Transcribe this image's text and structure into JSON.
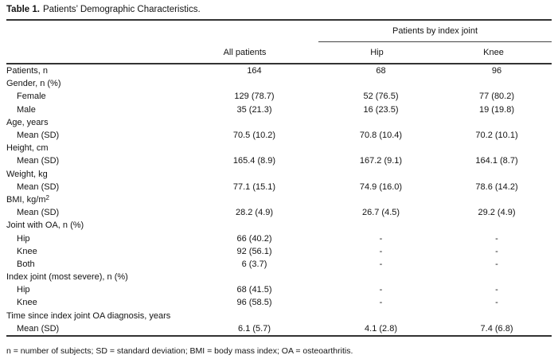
{
  "table": {
    "title_label": "Table 1.",
    "title_text": "Patients’ Demographic Characteristics.",
    "spanner": "Patients by index joint",
    "columns": [
      "All patients",
      "Hip",
      "Knee"
    ],
    "rows": [
      {
        "label": "Patients, n",
        "indent": false,
        "values": [
          "164",
          "68",
          "96"
        ]
      },
      {
        "label": "Gender, n (%)",
        "indent": false,
        "values": [
          "",
          "",
          ""
        ]
      },
      {
        "label": "Female",
        "indent": true,
        "values": [
          "129 (78.7)",
          "52 (76.5)",
          "77 (80.2)"
        ]
      },
      {
        "label": "Male",
        "indent": true,
        "values": [
          "35 (21.3)",
          "16 (23.5)",
          "19 (19.8)"
        ]
      },
      {
        "label": "Age, years",
        "indent": false,
        "values": [
          "",
          "",
          ""
        ]
      },
      {
        "label": "Mean (SD)",
        "indent": true,
        "values": [
          "70.5 (10.2)",
          "70.8 (10.4)",
          "70.2 (10.1)"
        ]
      },
      {
        "label": "Height, cm",
        "indent": false,
        "values": [
          "",
          "",
          ""
        ]
      },
      {
        "label": "Mean (SD)",
        "indent": true,
        "values": [
          "165.4 (8.9)",
          "167.2 (9.1)",
          "164.1 (8.7)"
        ]
      },
      {
        "label": "Weight, kg",
        "indent": false,
        "values": [
          "",
          "",
          ""
        ]
      },
      {
        "label": "Mean (SD)",
        "indent": true,
        "values": [
          "77.1 (15.1)",
          "74.9 (16.0)",
          "78.6 (14.2)"
        ]
      },
      {
        "label": "BMI, kg/m",
        "label_sup": "2",
        "indent": false,
        "values": [
          "",
          "",
          ""
        ]
      },
      {
        "label": "Mean (SD)",
        "indent": true,
        "values": [
          "28.2 (4.9)",
          "26.7 (4.5)",
          "29.2 (4.9)"
        ]
      },
      {
        "label": "Joint with OA, n (%)",
        "indent": false,
        "values": [
          "",
          "",
          ""
        ]
      },
      {
        "label": "Hip",
        "indent": true,
        "values": [
          "66 (40.2)",
          "-",
          "-"
        ]
      },
      {
        "label": "Knee",
        "indent": true,
        "values": [
          "92 (56.1)",
          "-",
          "-"
        ]
      },
      {
        "label": "Both",
        "indent": true,
        "values": [
          "6 (3.7)",
          "-",
          "-"
        ]
      },
      {
        "label": "Index joint (most severe), n (%)",
        "indent": false,
        "values": [
          "",
          "",
          ""
        ]
      },
      {
        "label": "Hip",
        "indent": true,
        "values": [
          "68 (41.5)",
          "-",
          "-"
        ]
      },
      {
        "label": "Knee",
        "indent": true,
        "values": [
          "96 (58.5)",
          "-",
          "-"
        ]
      },
      {
        "label": "Time since index joint OA diagnosis, years",
        "indent": false,
        "values": [
          "",
          "",
          ""
        ]
      },
      {
        "label": "Mean (SD)",
        "indent": true,
        "values": [
          "6.1 (5.7)",
          "4.1 (2.8)",
          "7.4 (6.8)"
        ]
      }
    ],
    "footnote": "n = number of subjects; SD = standard deviation; BMI = body mass index; OA = osteoarthritis."
  }
}
